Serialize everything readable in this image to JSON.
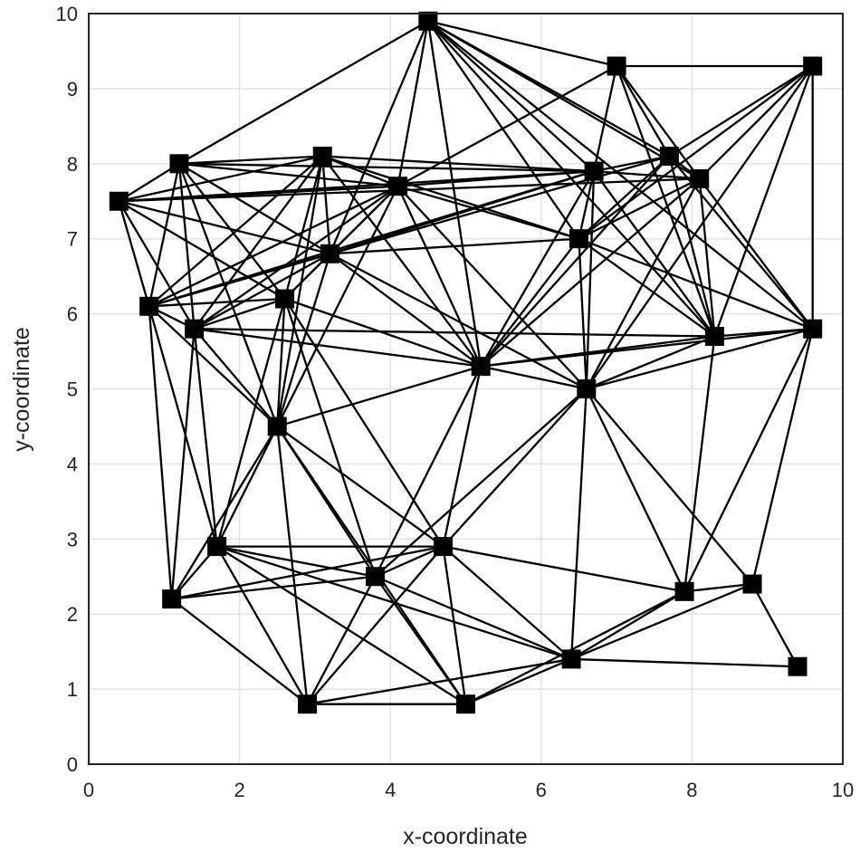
{
  "chart_data": {
    "type": "scatter",
    "xlabel": "x-coordinate",
    "ylabel": "y-coordinate",
    "xlim": [
      0,
      10
    ],
    "ylim": [
      0,
      10
    ],
    "grid": true,
    "x_ticks": [
      "0",
      "2",
      "4",
      "6",
      "8",
      "10"
    ],
    "y_ticks": [
      "0",
      "1",
      "2",
      "3",
      "4",
      "5",
      "6",
      "7",
      "8",
      "9",
      "10"
    ],
    "colors": {
      "nodes": "#000000",
      "edges": "#000000",
      "grid": "#e3e3e3",
      "frame": "#262626"
    },
    "nodes": [
      {
        "x": 4.5,
        "y": 9.9
      },
      {
        "x": 7.0,
        "y": 9.3
      },
      {
        "x": 9.6,
        "y": 9.3
      },
      {
        "x": 1.2,
        "y": 8.0
      },
      {
        "x": 3.1,
        "y": 8.1
      },
      {
        "x": 0.4,
        "y": 7.5
      },
      {
        "x": 4.1,
        "y": 7.7
      },
      {
        "x": 6.7,
        "y": 7.9
      },
      {
        "x": 7.7,
        "y": 8.1
      },
      {
        "x": 8.1,
        "y": 7.8
      },
      {
        "x": 6.5,
        "y": 7.0
      },
      {
        "x": 3.2,
        "y": 6.8
      },
      {
        "x": 0.8,
        "y": 6.1
      },
      {
        "x": 2.6,
        "y": 6.2
      },
      {
        "x": 1.4,
        "y": 5.8
      },
      {
        "x": 5.2,
        "y": 5.3
      },
      {
        "x": 8.3,
        "y": 5.7
      },
      {
        "x": 9.6,
        "y": 5.8
      },
      {
        "x": 6.6,
        "y": 5.0
      },
      {
        "x": 2.5,
        "y": 4.5
      },
      {
        "x": 1.7,
        "y": 2.9
      },
      {
        "x": 4.7,
        "y": 2.9
      },
      {
        "x": 3.8,
        "y": 2.5
      },
      {
        "x": 1.1,
        "y": 2.2
      },
      {
        "x": 7.9,
        "y": 2.3
      },
      {
        "x": 8.8,
        "y": 2.4
      },
      {
        "x": 6.4,
        "y": 1.4
      },
      {
        "x": 9.4,
        "y": 1.3
      },
      {
        "x": 2.9,
        "y": 0.8
      },
      {
        "x": 5.0,
        "y": 0.8
      }
    ],
    "edges": [
      [
        0,
        1
      ],
      [
        0,
        3
      ],
      [
        0,
        6
      ],
      [
        0,
        7
      ],
      [
        0,
        8
      ],
      [
        0,
        9
      ],
      [
        0,
        10
      ],
      [
        0,
        11
      ],
      [
        0,
        16
      ],
      [
        0,
        15
      ],
      [
        0,
        17
      ],
      [
        1,
        2
      ],
      [
        1,
        7
      ],
      [
        1,
        8
      ],
      [
        1,
        9
      ],
      [
        1,
        6
      ],
      [
        1,
        16
      ],
      [
        2,
        17
      ],
      [
        2,
        9
      ],
      [
        2,
        8
      ],
      [
        2,
        10
      ],
      [
        2,
        18
      ],
      [
        2,
        16
      ],
      [
        3,
        4
      ],
      [
        3,
        5
      ],
      [
        3,
        6
      ],
      [
        3,
        12
      ],
      [
        3,
        14
      ],
      [
        3,
        13
      ],
      [
        3,
        19
      ],
      [
        3,
        11
      ],
      [
        3,
        7
      ],
      [
        4,
        5
      ],
      [
        4,
        6
      ],
      [
        4,
        7
      ],
      [
        4,
        11
      ],
      [
        4,
        12
      ],
      [
        4,
        13
      ],
      [
        4,
        14
      ],
      [
        4,
        19
      ],
      [
        4,
        15
      ],
      [
        4,
        10
      ],
      [
        5,
        6
      ],
      [
        5,
        11
      ],
      [
        5,
        12
      ],
      [
        5,
        13
      ],
      [
        5,
        14
      ],
      [
        5,
        7
      ],
      [
        5,
        9
      ],
      [
        6,
        10
      ],
      [
        6,
        11
      ],
      [
        6,
        12
      ],
      [
        6,
        14
      ],
      [
        6,
        15
      ],
      [
        6,
        19
      ],
      [
        6,
        7
      ],
      [
        6,
        18
      ],
      [
        6,
        13
      ],
      [
        7,
        8
      ],
      [
        7,
        9
      ],
      [
        7,
        10
      ],
      [
        7,
        11
      ],
      [
        7,
        15
      ],
      [
        7,
        16
      ],
      [
        7,
        18
      ],
      [
        7,
        12
      ],
      [
        8,
        9
      ],
      [
        8,
        10
      ],
      [
        8,
        15
      ],
      [
        8,
        16
      ],
      [
        8,
        17
      ],
      [
        8,
        12
      ],
      [
        9,
        10
      ],
      [
        9,
        16
      ],
      [
        9,
        17
      ],
      [
        9,
        15
      ],
      [
        9,
        18
      ],
      [
        10,
        11
      ],
      [
        10,
        15
      ],
      [
        10,
        16
      ],
      [
        10,
        18
      ],
      [
        10,
        17
      ],
      [
        11,
        12
      ],
      [
        11,
        13
      ],
      [
        11,
        14
      ],
      [
        11,
        15
      ],
      [
        11,
        19
      ],
      [
        11,
        18
      ],
      [
        12,
        13
      ],
      [
        12,
        14
      ],
      [
        12,
        19
      ],
      [
        12,
        23
      ],
      [
        12,
        20
      ],
      [
        13,
        14
      ],
      [
        13,
        15
      ],
      [
        13,
        19
      ],
      [
        13,
        20
      ],
      [
        13,
        22
      ],
      [
        13,
        21
      ],
      [
        14,
        15
      ],
      [
        14,
        16
      ],
      [
        14,
        20
      ],
      [
        14,
        23
      ],
      [
        14,
        19
      ],
      [
        15,
        16
      ],
      [
        15,
        18
      ],
      [
        15,
        19
      ],
      [
        15,
        22
      ],
      [
        15,
        21
      ],
      [
        16,
        17
      ],
      [
        16,
        24
      ],
      [
        16,
        18
      ],
      [
        17,
        18
      ],
      [
        17,
        24
      ],
      [
        17,
        25
      ],
      [
        17,
        15
      ],
      [
        18,
        21
      ],
      [
        18,
        22
      ],
      [
        18,
        24
      ],
      [
        18,
        25
      ],
      [
        18,
        26
      ],
      [
        19,
        20
      ],
      [
        19,
        21
      ],
      [
        19,
        22
      ],
      [
        19,
        23
      ],
      [
        19,
        28
      ],
      [
        19,
        29
      ],
      [
        20,
        21
      ],
      [
        20,
        22
      ],
      [
        20,
        23
      ],
      [
        20,
        26
      ],
      [
        20,
        28
      ],
      [
        20,
        29
      ],
      [
        21,
        22
      ],
      [
        21,
        24
      ],
      [
        21,
        26
      ],
      [
        21,
        28
      ],
      [
        21,
        29
      ],
      [
        22,
        23
      ],
      [
        22,
        28
      ],
      [
        22,
        29
      ],
      [
        22,
        26
      ],
      [
        23,
        28
      ],
      [
        23,
        21
      ],
      [
        24,
        25
      ],
      [
        24,
        26
      ],
      [
        24,
        29
      ],
      [
        25,
        26
      ],
      [
        25,
        27
      ],
      [
        26,
        27
      ],
      [
        26,
        28
      ],
      [
        26,
        29
      ],
      [
        28,
        29
      ]
    ]
  }
}
